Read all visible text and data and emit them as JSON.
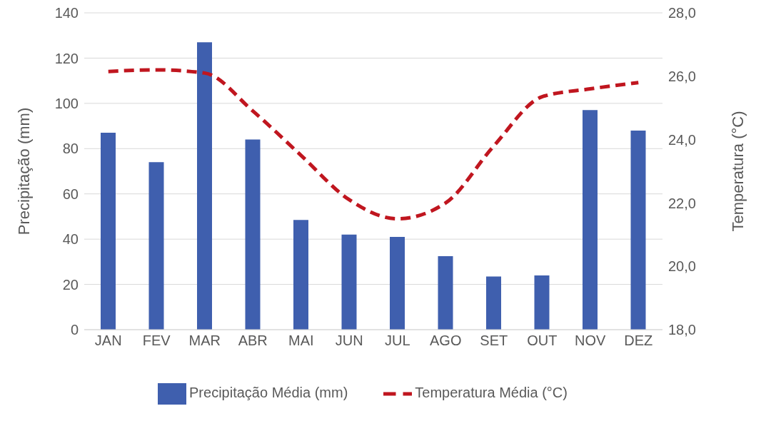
{
  "chart_data": {
    "type": "bar",
    "categories": [
      "JAN",
      "FEV",
      "MAR",
      "ABR",
      "MAI",
      "JUN",
      "JUL",
      "AGO",
      "SET",
      "OUT",
      "NOV",
      "DEZ"
    ],
    "series": [
      {
        "name": "Precipitação Média (mm)",
        "color": "#3f5fae",
        "values": [
          87,
          74,
          127,
          84,
          48.5,
          42,
          41,
          32.5,
          23.5,
          24,
          97,
          88
        ]
      },
      {
        "name": "Temperatura Média (°C)",
        "type": "line",
        "axis": "y2",
        "color": "#c0161f",
        "line_style": "dashed",
        "marker": "none",
        "values": [
          26.15,
          26.2,
          26.1,
          24.9,
          23.5,
          22.1,
          21.5,
          22.0,
          23.8,
          25.35,
          25.6,
          25.8
        ]
      }
    ],
    "ylabel": "Precipitação (mm)",
    "y2label": "Temperatura (°C)",
    "ylim": [
      0,
      140
    ],
    "yticks": [
      0,
      20,
      40,
      60,
      80,
      100,
      120,
      140
    ],
    "y2lim": [
      18,
      28
    ],
    "y2ticks": [
      {
        "value": 18,
        "label": "18,0"
      },
      {
        "value": 20,
        "label": "20,0"
      },
      {
        "value": 22,
        "label": "22,0"
      },
      {
        "value": 24,
        "label": "24,0"
      },
      {
        "value": 26,
        "label": "26,0"
      },
      {
        "value": 28,
        "label": "28,0"
      }
    ],
    "grid": "y",
    "legend": "bottom"
  }
}
